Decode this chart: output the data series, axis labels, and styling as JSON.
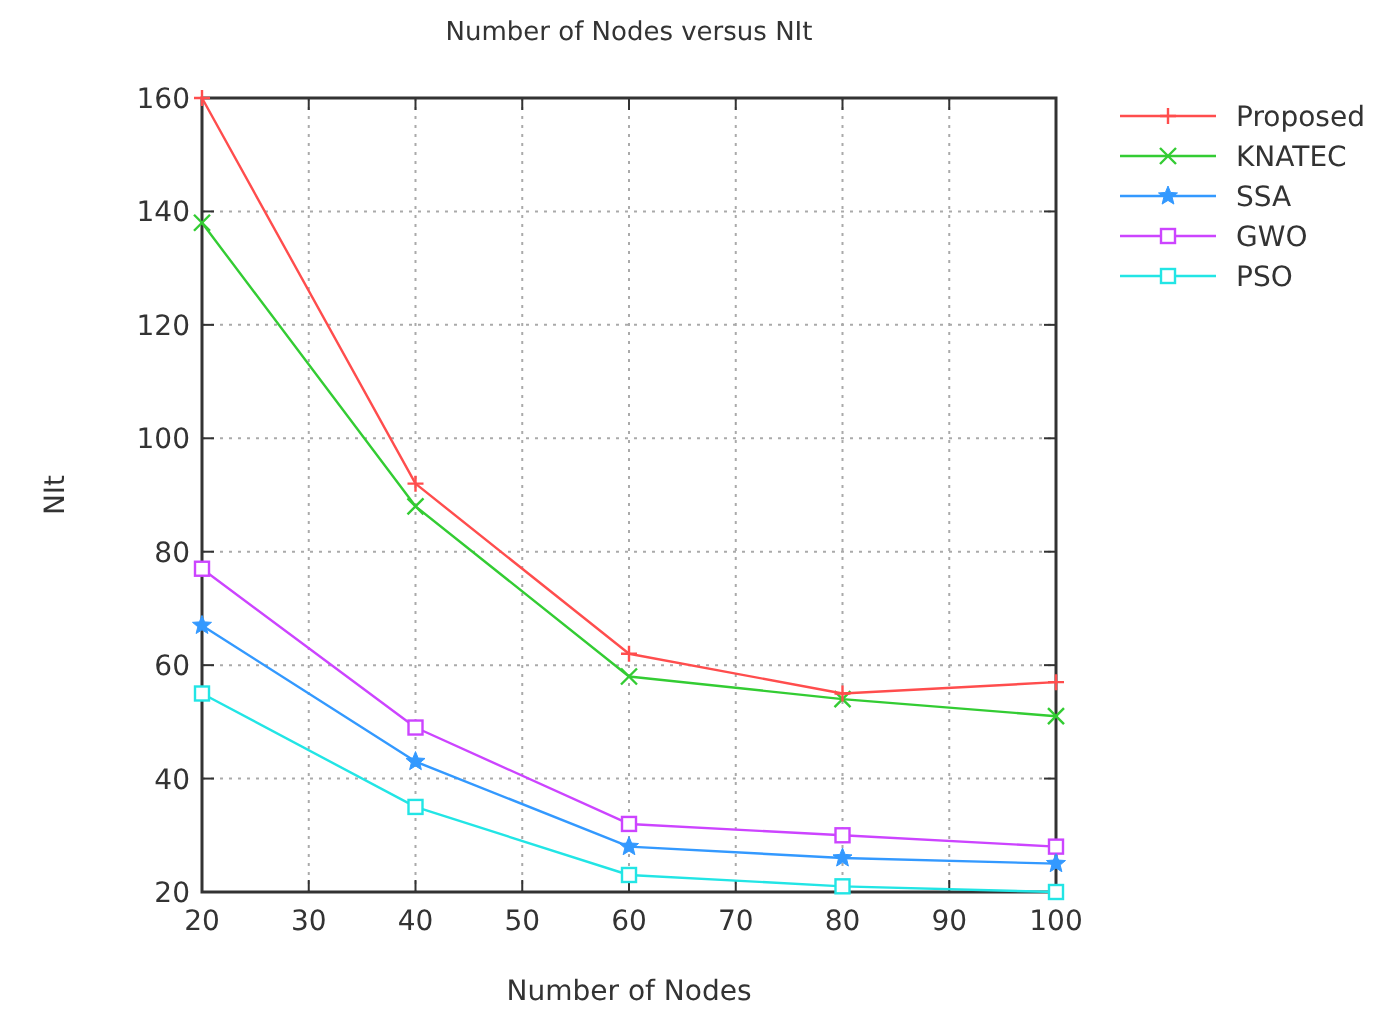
{
  "chart_data": {
    "type": "line",
    "title": "Number of Nodes versus NIt",
    "xlabel": "Number of Nodes",
    "ylabel": "NIt",
    "x": [
      20,
      40,
      60,
      80,
      100
    ],
    "xlim": [
      20,
      100
    ],
    "xticks": [
      20,
      30,
      40,
      50,
      60,
      70,
      80,
      90,
      100
    ],
    "ylim": [
      20,
      160
    ],
    "yticks": [
      20,
      40,
      60,
      80,
      100,
      120,
      140,
      160
    ],
    "grid": true,
    "legend": "top right",
    "line_style": "solid",
    "series": [
      {
        "name": "Proposed",
        "color": "#ff4d4d",
        "marker": "plus",
        "values": [
          160,
          92,
          62,
          55,
          57
        ]
      },
      {
        "name": "KNATEC",
        "color": "#33cc33",
        "marker": "cross",
        "values": [
          138,
          88,
          58,
          54,
          51
        ]
      },
      {
        "name": "SSA",
        "color": "#3399ff",
        "marker": "star",
        "values": [
          67,
          43,
          28,
          26,
          25
        ]
      },
      {
        "name": "GWO",
        "color": "#cc44ff",
        "marker": "square",
        "values": [
          77,
          49,
          32,
          30,
          28
        ]
      },
      {
        "name": "PSO",
        "color": "#22e5e5",
        "marker": "square",
        "values": [
          55,
          35,
          23,
          21,
          20
        ]
      }
    ]
  }
}
